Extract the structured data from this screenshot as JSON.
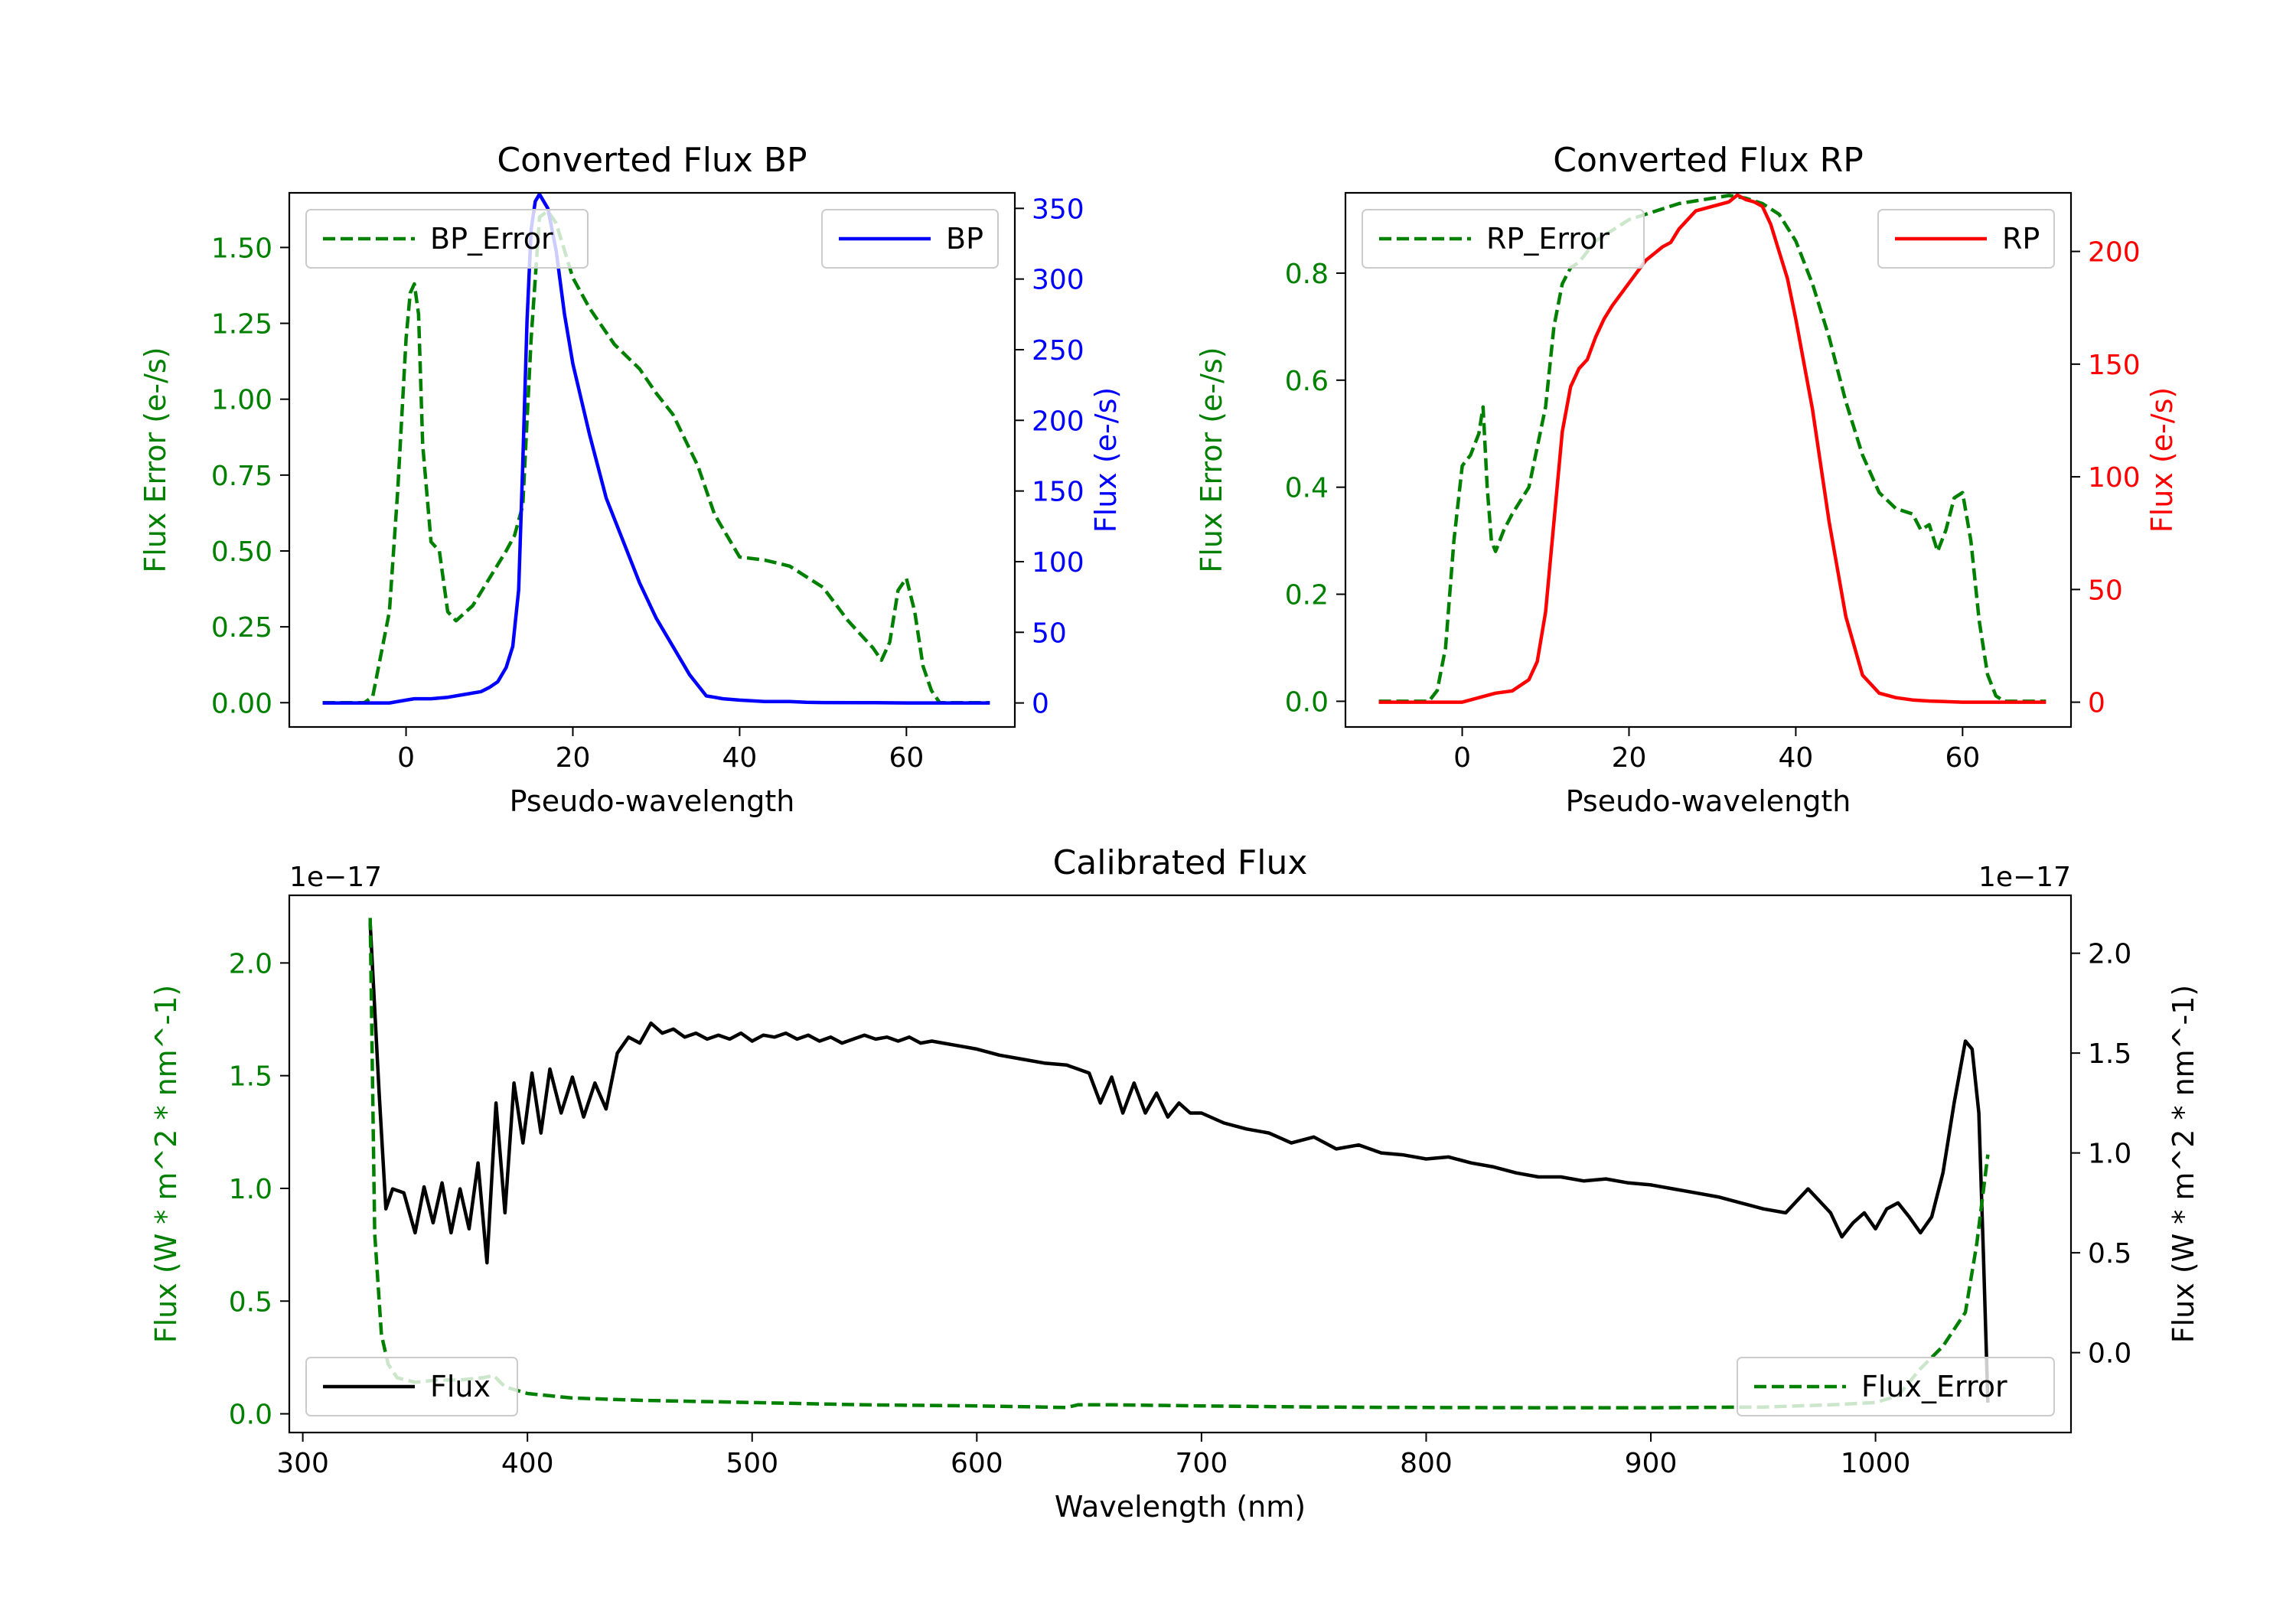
{
  "chart_data": [
    {
      "type": "line",
      "title": "Converted Flux BP",
      "xlabel": "Pseudo-wavelength",
      "ylabel_left": "Flux Error (e-/s)",
      "ylabel_right": "Flux (e-/s)",
      "xlim": [
        -14,
        73
      ],
      "ylim_left": [
        -0.08,
        1.68
      ],
      "ylim_right": [
        -17,
        361
      ],
      "xticks": [
        0,
        20,
        40,
        60
      ],
      "yticks_left": [
        0.0,
        0.25,
        0.5,
        0.75,
        1.0,
        1.25,
        1.5
      ],
      "yticks_left_labels": [
        "0.00",
        "0.25",
        "0.50",
        "0.75",
        "1.00",
        "1.25",
        "1.50"
      ],
      "yticks_right": [
        0,
        50,
        100,
        150,
        200,
        250,
        300,
        350
      ],
      "legend": [
        {
          "name": "BP_Error",
          "position": "upper left"
        },
        {
          "name": "BP",
          "position": "upper right"
        }
      ],
      "series": [
        {
          "name": "BP_Error",
          "axis": "left",
          "color": "#008000",
          "style": "dashed",
          "x": [
            -10,
            -5,
            -4,
            -2,
            -1,
            0,
            0.5,
            1,
            1.5,
            2,
            3,
            4,
            5,
            6,
            8,
            10,
            12,
            13,
            14,
            15,
            16,
            17,
            18,
            20,
            22,
            25,
            28,
            30,
            32,
            35,
            37,
            40,
            43,
            46,
            50,
            53,
            56,
            57,
            58,
            59,
            60,
            61,
            62,
            63,
            64,
            65,
            70
          ],
          "values": [
            0,
            0,
            0.02,
            0.3,
            0.7,
            1.2,
            1.35,
            1.38,
            1.28,
            0.85,
            0.53,
            0.5,
            0.3,
            0.27,
            0.32,
            0.41,
            0.5,
            0.55,
            0.65,
            1.2,
            1.6,
            1.62,
            1.58,
            1.4,
            1.3,
            1.18,
            1.1,
            1.02,
            0.95,
            0.78,
            0.62,
            0.48,
            0.47,
            0.45,
            0.38,
            0.27,
            0.18,
            0.14,
            0.2,
            0.37,
            0.41,
            0.3,
            0.12,
            0.04,
            0,
            0,
            0
          ]
        },
        {
          "name": "BP",
          "axis": "right",
          "color": "#0000ff",
          "style": "solid",
          "x": [
            -10,
            -2,
            0,
            1,
            3,
            5,
            7,
            9,
            10,
            11,
            12,
            12.8,
            13.5,
            14,
            14.5,
            15,
            15.5,
            16,
            17,
            18,
            19,
            20,
            22,
            24,
            26,
            28,
            30,
            32,
            34,
            36,
            37,
            38,
            40,
            43,
            46,
            48,
            50,
            55,
            60,
            65,
            70
          ],
          "values": [
            0,
            0,
            2,
            3,
            3,
            4,
            6,
            8,
            11,
            15,
            25,
            40,
            80,
            170,
            270,
            335,
            355,
            360,
            350,
            320,
            275,
            240,
            190,
            145,
            115,
            85,
            60,
            40,
            20,
            5,
            4,
            3,
            2,
            1,
            1,
            0.5,
            0.3,
            0.2,
            0,
            0,
            0
          ]
        }
      ]
    },
    {
      "type": "line",
      "title": "Converted Flux RP",
      "xlabel": "Pseudo-wavelength",
      "ylabel_left": "Flux Error (e-/s)",
      "ylabel_right": "Flux (e-/s)",
      "xlim": [
        -14,
        73
      ],
      "ylim_left": [
        -0.048,
        0.95
      ],
      "ylim_right": [
        -11,
        226
      ],
      "xticks": [
        0,
        20,
        40,
        60
      ],
      "yticks_left": [
        0.0,
        0.2,
        0.4,
        0.6,
        0.8
      ],
      "yticks_left_labels": [
        "0.0",
        "0.2",
        "0.4",
        "0.6",
        "0.8"
      ],
      "yticks_right": [
        0,
        50,
        100,
        150,
        200
      ],
      "legend": [
        {
          "name": "RP_Error",
          "position": "upper left"
        },
        {
          "name": "RP",
          "position": "upper right"
        }
      ],
      "series": [
        {
          "name": "RP_Error",
          "axis": "left",
          "color": "#008000",
          "style": "dashed",
          "x": [
            -10,
            -4,
            -3,
            -2,
            -1,
            0,
            1,
            2,
            2.5,
            3,
            3.5,
            4,
            5,
            6,
            8,
            10,
            11,
            12,
            13,
            14,
            16,
            18,
            20,
            22,
            24,
            26,
            28,
            30,
            32,
            34,
            36,
            38,
            40,
            42,
            44,
            46,
            48,
            50,
            52,
            54,
            55,
            56,
            57,
            58,
            59,
            60,
            61,
            62,
            63,
            64,
            65,
            70
          ],
          "values": [
            0,
            0,
            0.02,
            0.1,
            0.3,
            0.44,
            0.46,
            0.5,
            0.55,
            0.4,
            0.3,
            0.28,
            0.32,
            0.35,
            0.4,
            0.55,
            0.7,
            0.78,
            0.81,
            0.82,
            0.86,
            0.88,
            0.9,
            0.91,
            0.92,
            0.93,
            0.935,
            0.94,
            0.945,
            0.94,
            0.93,
            0.91,
            0.86,
            0.78,
            0.68,
            0.56,
            0.46,
            0.39,
            0.36,
            0.35,
            0.32,
            0.33,
            0.28,
            0.32,
            0.38,
            0.39,
            0.3,
            0.15,
            0.05,
            0.01,
            0,
            0
          ]
        },
        {
          "name": "RP",
          "axis": "right",
          "color": "#ff0000",
          "style": "solid",
          "x": [
            -10,
            -2,
            0,
            2,
            4,
            6,
            8,
            9,
            10,
            11,
            12,
            13,
            14,
            15,
            16,
            17,
            18,
            20,
            22,
            24,
            25,
            26,
            27,
            28,
            30,
            32,
            33,
            34,
            35,
            36,
            37,
            38,
            39,
            40,
            42,
            44,
            46,
            48,
            50,
            52,
            54,
            56,
            60,
            65,
            70
          ],
          "values": [
            0,
            0,
            0,
            2,
            4,
            5,
            10,
            18,
            40,
            80,
            120,
            140,
            148,
            152,
            162,
            170,
            176,
            186,
            196,
            202,
            204,
            210,
            214,
            218,
            220,
            222,
            225,
            223,
            222,
            220,
            212,
            200,
            188,
            170,
            130,
            80,
            38,
            12,
            4,
            2,
            1,
            0.5,
            0,
            0,
            0
          ]
        }
      ]
    },
    {
      "type": "line",
      "title": "Calibrated Flux",
      "xlabel": "Wavelength (nm)",
      "ylabel_left": "Flux (W * m^2 * nm^-1)",
      "ylabel_right": "Flux (W * m^2 * nm^-1)",
      "offset_left": "1e−17",
      "offset_right": "1e−17",
      "xlim": [
        294,
        1087
      ],
      "ylim_left": [
        -0.083,
        2.3
      ],
      "ylim_right": [
        -0.4,
        2.29
      ],
      "xticks": [
        300,
        400,
        500,
        600,
        700,
        800,
        900,
        1000
      ],
      "yticks_left": [
        0.0,
        0.5,
        1.0,
        1.5,
        2.0
      ],
      "yticks_left_labels": [
        "0.0",
        "0.5",
        "1.0",
        "1.5",
        "2.0"
      ],
      "yticks_right": [
        0.0,
        0.5,
        1.0,
        1.5,
        2.0
      ],
      "yticks_right_labels": [
        "0.0",
        "0.5",
        "1.0",
        "1.5",
        "2.0"
      ],
      "legend": [
        {
          "name": "Flux",
          "position": "lower left"
        },
        {
          "name": "Flux_Error",
          "position": "lower right"
        }
      ],
      "series": [
        {
          "name": "Flux",
          "axis": "right",
          "color": "#000000",
          "style": "solid",
          "x": [
            330,
            334,
            337,
            340,
            345,
            350,
            354,
            358,
            362,
            366,
            370,
            374,
            378,
            382,
            386,
            390,
            394,
            398,
            402,
            406,
            410,
            415,
            420,
            425,
            430,
            435,
            440,
            445,
            450,
            455,
            460,
            465,
            470,
            475,
            480,
            485,
            490,
            495,
            500,
            505,
            510,
            515,
            520,
            525,
            530,
            535,
            540,
            545,
            550,
            555,
            560,
            565,
            570,
            575,
            580,
            585,
            590,
            600,
            610,
            620,
            630,
            640,
            645,
            650,
            655,
            660,
            665,
            670,
            675,
            680,
            685,
            690,
            695,
            700,
            710,
            720,
            730,
            740,
            750,
            760,
            770,
            780,
            790,
            800,
            810,
            820,
            830,
            840,
            850,
            860,
            870,
            880,
            890,
            900,
            910,
            920,
            930,
            940,
            950,
            960,
            970,
            980,
            985,
            990,
            995,
            1000,
            1005,
            1010,
            1015,
            1020,
            1025,
            1030,
            1035,
            1040,
            1043,
            1046,
            1048,
            1050
          ],
          "values": [
            2.15,
            1.3,
            0.72,
            0.82,
            0.8,
            0.6,
            0.83,
            0.65,
            0.85,
            0.6,
            0.82,
            0.62,
            0.95,
            0.45,
            1.25,
            0.7,
            1.35,
            1.05,
            1.4,
            1.1,
            1.42,
            1.2,
            1.38,
            1.18,
            1.35,
            1.22,
            1.5,
            1.58,
            1.55,
            1.65,
            1.6,
            1.62,
            1.58,
            1.6,
            1.57,
            1.59,
            1.57,
            1.6,
            1.56,
            1.59,
            1.58,
            1.6,
            1.57,
            1.59,
            1.56,
            1.58,
            1.55,
            1.57,
            1.59,
            1.57,
            1.58,
            1.56,
            1.58,
            1.55,
            1.56,
            1.55,
            1.54,
            1.52,
            1.49,
            1.47,
            1.45,
            1.44,
            1.42,
            1.4,
            1.25,
            1.38,
            1.2,
            1.35,
            1.2,
            1.3,
            1.18,
            1.25,
            1.2,
            1.2,
            1.15,
            1.12,
            1.1,
            1.05,
            1.08,
            1.02,
            1.04,
            1.0,
            0.99,
            0.97,
            0.98,
            0.95,
            0.93,
            0.9,
            0.88,
            0.88,
            0.86,
            0.87,
            0.85,
            0.84,
            0.82,
            0.8,
            0.78,
            0.75,
            0.72,
            0.7,
            0.82,
            0.7,
            0.58,
            0.65,
            0.7,
            0.62,
            0.72,
            0.75,
            0.68,
            0.6,
            0.68,
            0.9,
            1.25,
            1.56,
            1.52,
            1.2,
            0.5,
            -0.25
          ]
        },
        {
          "name": "Flux_Error",
          "axis": "left",
          "color": "#008000",
          "style": "dashed",
          "x": [
            330,
            332,
            335,
            338,
            342,
            350,
            360,
            370,
            380,
            385,
            390,
            400,
            420,
            450,
            500,
            550,
            600,
            630,
            640,
            645,
            660,
            700,
            750,
            800,
            850,
            900,
            950,
            980,
            1000,
            1010,
            1020,
            1030,
            1040,
            1045,
            1050
          ],
          "values": [
            2.2,
            0.8,
            0.35,
            0.22,
            0.16,
            0.14,
            0.15,
            0.15,
            0.16,
            0.17,
            0.12,
            0.09,
            0.07,
            0.06,
            0.05,
            0.04,
            0.035,
            0.03,
            0.028,
            0.04,
            0.04,
            0.035,
            0.03,
            0.028,
            0.027,
            0.027,
            0.03,
            0.04,
            0.05,
            0.08,
            0.2,
            0.3,
            0.45,
            0.75,
            1.15
          ]
        }
      ]
    }
  ]
}
